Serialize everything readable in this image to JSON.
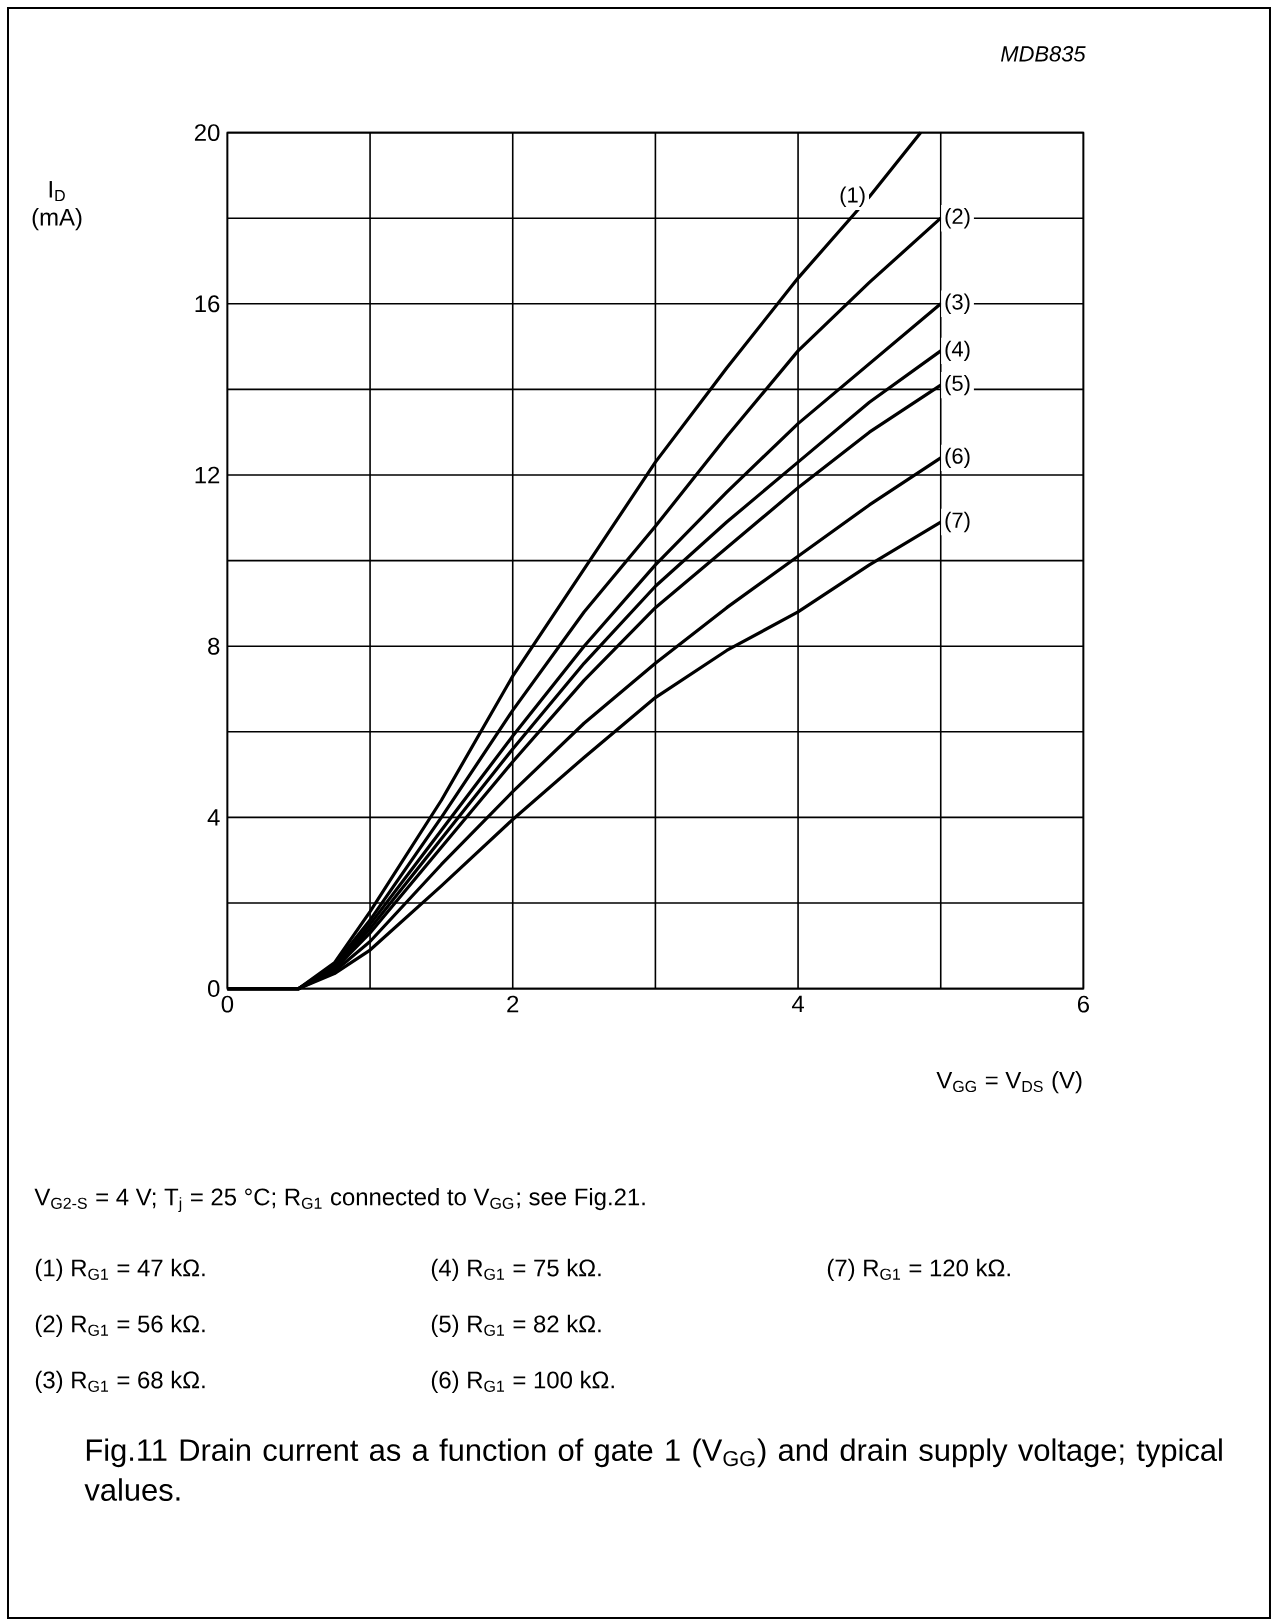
{
  "chart_data": {
    "type": "line",
    "xlabel": "V$_{GG}$ = V$_{DS}$ (V)",
    "ylabel": "I$_{D}$ (mA)",
    "series": [
      {
        "name": "(1)",
        "color": "#000000",
        "x": [
          0,
          0.5,
          0.75,
          1,
          1.5,
          2,
          2.5,
          3,
          3.5,
          4,
          4.5,
          4.86
        ],
        "values": [
          0,
          0,
          0.6,
          1.8,
          4.4,
          7.3,
          9.8,
          12.3,
          14.5,
          16.6,
          18.5,
          20
        ]
      },
      {
        "name": "(2)",
        "color": "#000000",
        "x": [
          0,
          0.5,
          0.75,
          1,
          1.5,
          2,
          2.5,
          3,
          3.5,
          4,
          4.5,
          5
        ],
        "values": [
          0,
          0,
          0.55,
          1.6,
          4.0,
          6.5,
          8.8,
          10.8,
          12.9,
          14.9,
          16.5,
          18
        ]
      },
      {
        "name": "(3)",
        "color": "#000000",
        "x": [
          0,
          0.5,
          0.75,
          1,
          1.5,
          2,
          2.5,
          3,
          3.5,
          4,
          4.5,
          5
        ],
        "values": [
          0,
          0,
          0.5,
          1.5,
          3.7,
          5.9,
          8.0,
          9.9,
          11.6,
          13.2,
          14.6,
          16
        ]
      },
      {
        "name": "(4)",
        "color": "#000000",
        "x": [
          0,
          0.5,
          0.75,
          1,
          1.5,
          2,
          2.5,
          3,
          3.5,
          4,
          4.5,
          5
        ],
        "values": [
          0,
          0,
          0.48,
          1.4,
          3.5,
          5.6,
          7.6,
          9.4,
          10.9,
          12.3,
          13.7,
          14.9
        ]
      },
      {
        "name": "(5)",
        "color": "#000000",
        "x": [
          0,
          0.5,
          0.75,
          1,
          1.5,
          2,
          2.5,
          3,
          3.5,
          4,
          4.5,
          5
        ],
        "values": [
          0,
          0,
          0.45,
          1.3,
          3.3,
          5.3,
          7.2,
          8.9,
          10.3,
          11.7,
          13.0,
          14.1
        ]
      },
      {
        "name": "(6)",
        "color": "#000000",
        "x": [
          0,
          0.5,
          0.75,
          1,
          1.5,
          2,
          2.5,
          3,
          3.5,
          4,
          4.5,
          5
        ],
        "values": [
          0,
          0,
          0.4,
          1.1,
          2.9,
          4.6,
          6.2,
          7.6,
          8.9,
          10.1,
          11.3,
          12.4
        ]
      },
      {
        "name": "(7)",
        "color": "#000000",
        "x": [
          0,
          0.5,
          0.75,
          1,
          1.5,
          2,
          2.5,
          3,
          3.5,
          4,
          4.5,
          5
        ],
        "values": [
          0,
          0,
          0.35,
          0.9,
          2.4,
          3.95,
          5.4,
          6.8,
          7.9,
          8.8,
          9.9,
          10.9
        ]
      }
    ],
    "xlim": [
      0,
      6
    ],
    "ylim": [
      0,
      20
    ],
    "xticks": [
      0,
      {
        "value": 1,
        "label": null
      },
      2,
      {
        "value": 3,
        "label": null
      },
      4,
      {
        "value": 5,
        "label": null
      },
      6
    ],
    "yticks": [
      0,
      {
        "value": 2,
        "label": null
      },
      4,
      {
        "value": 6,
        "label": null
      },
      8,
      {
        "value": 10,
        "label": null
      },
      12,
      {
        "value": 14,
        "label": null
      },
      16,
      {
        "value": 18,
        "label": null
      },
      20
    ],
    "grid": true,
    "annotations": [
      "MDB835",
      "V$_{G2-S}$ = 4 V; T$_{j}$ = 25 °C; R$_{G1}$ connected to V$_{GG}$; see Fig.21.",
      "(1)  R$_{G1}$ = 47 kΩ.",
      "(2)  R$_{G1}$ = 56 kΩ.",
      "(3)  R$_{G1}$ = 68 kΩ.",
      "(4)  R$_{G1}$ = 75 kΩ.",
      "(5)  R$_{G1}$ = 82 kΩ.",
      "(6)  R$_{G1}$ = 100 kΩ.",
      "(7)  R$_{G1}$ = 120 kΩ.",
      "Fig.11  Drain current as a function of gate 1 (V$_{GG}$) and drain supply voltage; typical values."
    ]
  }
}
